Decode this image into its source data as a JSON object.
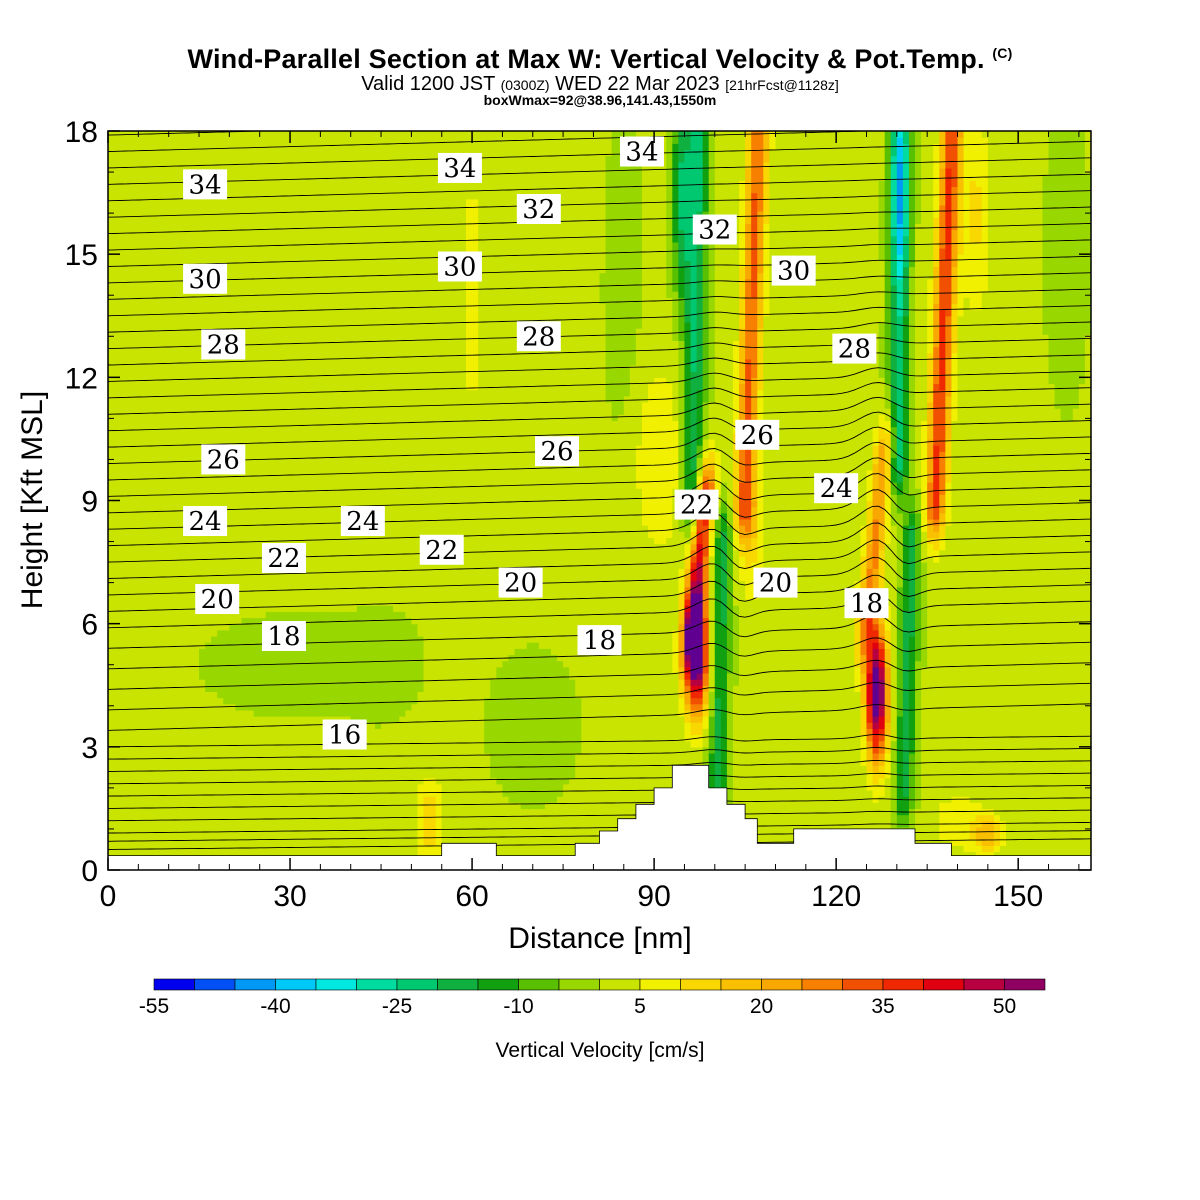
{
  "header": {
    "title": "Wind-Parallel Section at Max W: Vertical Velocity & Pot.Temp.",
    "copyright": "(C)",
    "valid_prefix": "Valid 1200 JST",
    "valid_utc": "(0300Z)",
    "valid_suffix": "WED 22 Mar 2023",
    "forecast_info": "[21hrFcst@1128z]",
    "box_info": "boxWmax=92@38.96,141.43,1550m"
  },
  "chart_data": {
    "type": "heatmap",
    "xlabel": "Distance [nm]",
    "ylabel": "Height [Kft MSL]",
    "xlim": [
      0,
      162
    ],
    "ylim": [
      0,
      18
    ],
    "x_ticks": [
      0,
      30,
      60,
      90,
      120,
      150
    ],
    "y_ticks": [
      0,
      3,
      6,
      9,
      12,
      15,
      18
    ],
    "colorbar": {
      "title": "Vertical Velocity [cm/s]",
      "tick_labels": [
        "-55",
        "-40",
        "-25",
        "-10",
        "5",
        "20",
        "35",
        "50"
      ],
      "tick_values": [
        -55,
        -40,
        -25,
        -10,
        5,
        20,
        35,
        50
      ],
      "bins": [
        -55,
        -50,
        -45,
        -40,
        -35,
        -30,
        -25,
        -20,
        -15,
        -10,
        -5,
        0,
        5,
        10,
        15,
        20,
        25,
        30,
        35,
        40,
        45,
        50,
        55
      ],
      "colors": [
        "#0000ee",
        "#0050f5",
        "#0098f5",
        "#00c8f8",
        "#00e8e0",
        "#00dca0",
        "#00c870",
        "#10b040",
        "#10a010",
        "#58c000",
        "#98d800",
        "#c8e400",
        "#f0f000",
        "#f8d800",
        "#f8c000",
        "#f8a800",
        "#f88000",
        "#f05000",
        "#f02800",
        "#e00010",
        "#b80040",
        "#900060",
        "#600090"
      ]
    },
    "theta_contour_labels": [
      {
        "value": "34",
        "x": 16,
        "y": 16.7
      },
      {
        "value": "30",
        "x": 16,
        "y": 14.4
      },
      {
        "value": "28",
        "x": 19,
        "y": 12.8
      },
      {
        "value": "26",
        "x": 19,
        "y": 10.0
      },
      {
        "value": "24",
        "x": 16,
        "y": 8.5
      },
      {
        "value": "22",
        "x": 29,
        "y": 7.6
      },
      {
        "value": "20",
        "x": 18,
        "y": 6.6
      },
      {
        "value": "18",
        "x": 29,
        "y": 5.7
      },
      {
        "value": "16",
        "x": 39,
        "y": 3.3
      },
      {
        "value": "34",
        "x": 58,
        "y": 17.1
      },
      {
        "value": "30",
        "x": 58,
        "y": 14.7
      },
      {
        "value": "24",
        "x": 42,
        "y": 8.5
      },
      {
        "value": "22",
        "x": 55,
        "y": 7.8
      },
      {
        "value": "32",
        "x": 71,
        "y": 16.1
      },
      {
        "value": "28",
        "x": 71,
        "y": 13.0
      },
      {
        "value": "26",
        "x": 74,
        "y": 10.2
      },
      {
        "value": "20",
        "x": 68,
        "y": 7.0
      },
      {
        "value": "18",
        "x": 81,
        "y": 5.6
      },
      {
        "value": "34",
        "x": 88,
        "y": 17.5
      },
      {
        "value": "32",
        "x": 100,
        "y": 15.6
      },
      {
        "value": "22",
        "x": 97,
        "y": 8.9
      },
      {
        "value": "26",
        "x": 107,
        "y": 10.6
      },
      {
        "value": "30",
        "x": 113,
        "y": 14.6
      },
      {
        "value": "20",
        "x": 110,
        "y": 7.0
      },
      {
        "value": "24",
        "x": 120,
        "y": 9.3
      },
      {
        "value": "28",
        "x": 123,
        "y": 12.7
      },
      {
        "value": "18",
        "x": 125,
        "y": 6.5
      }
    ]
  }
}
